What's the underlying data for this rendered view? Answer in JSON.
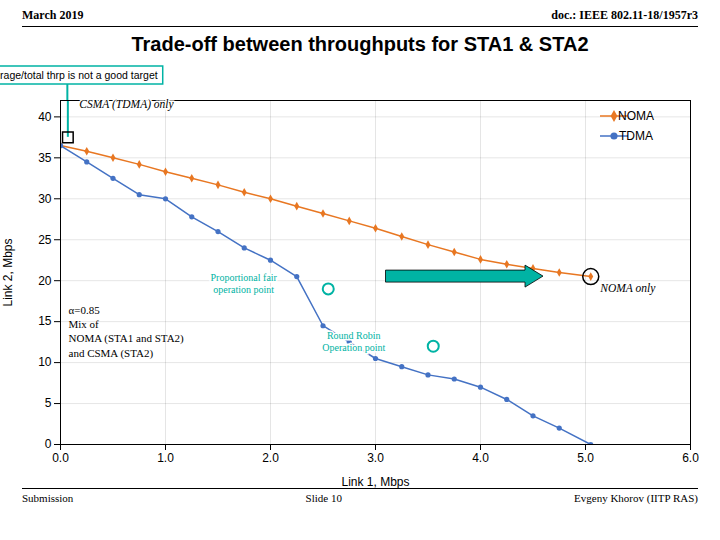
{
  "chart_data": {
    "type": "line",
    "title": "Trade-off between throughputs for STA1 & STA2",
    "header": {
      "left": "March 2019",
      "right": "doc.: IEEE 802.11-18/1957r3"
    },
    "footer": {
      "left": "Submission",
      "center": "Slide 10",
      "right": "Evgeny Khorov (IITP RAS)"
    },
    "xlabel": "Link 1, Mbps",
    "ylabel": "Link 2, Mbps",
    "xlim": [
      0,
      6
    ],
    "ylim": [
      0,
      42
    ],
    "xticks": [
      0,
      1,
      2,
      3,
      4,
      5,
      6
    ],
    "yticks": [
      0,
      5,
      10,
      15,
      20,
      25,
      30,
      35,
      40
    ],
    "grid": true,
    "legend": "upper right",
    "x": [
      0.0,
      0.25,
      0.5,
      0.75,
      1.0,
      1.25,
      1.5,
      1.75,
      2.0,
      2.25,
      2.5,
      2.75,
      3.0,
      3.25,
      3.5,
      3.75,
      4.0,
      4.25,
      4.5,
      4.75,
      5.05
    ],
    "series": [
      {
        "name": "NOMA",
        "color": "#E87722",
        "marker": "diamond",
        "values": [
          36.5,
          35.8,
          35.0,
          34.2,
          33.3,
          32.5,
          31.7,
          30.8,
          30.0,
          29.1,
          28.2,
          27.3,
          26.4,
          25.4,
          24.4,
          23.5,
          22.6,
          22.0,
          21.5,
          21.0,
          20.5
        ]
      },
      {
        "name": "TDMA",
        "color": "#4472C4",
        "marker": "circle",
        "values": [
          36.5,
          34.5,
          32.5,
          30.5,
          30.0,
          27.8,
          26.0,
          24.0,
          22.5,
          20.5,
          14.5,
          12.5,
          10.5,
          9.5,
          8.5,
          8.0,
          7.0,
          5.5,
          3.5,
          2.0,
          0.0
        ]
      }
    ],
    "points": [
      {
        "label": "Proportional fair\noperation point",
        "x": 2.55,
        "y": 19.0,
        "color": "#00B3A4",
        "marker": "circle"
      },
      {
        "label": "Round Robin\nOperation point",
        "x": 3.55,
        "y": 12.0,
        "color": "#00B3A4",
        "marker": "circle"
      },
      {
        "label": "NOMA only",
        "x": 5.05,
        "y": 20.5,
        "color": "black",
        "marker": "circle"
      },
      {
        "label": "CSMA (TDMA) only",
        "x": 0.07,
        "y": 37.5,
        "color": "black",
        "marker": "square",
        "callout": "max average/total thrp is not a good target",
        "callout_color": "#00B3A4"
      }
    ],
    "note": "α=0.85\nMix of\nNOMA (STA1 and STA2)\nand CSMA (STA2)",
    "arrow": {
      "x1": 3.1,
      "x2": 4.6,
      "y": 20.5,
      "color": "#00B3A4"
    }
  }
}
